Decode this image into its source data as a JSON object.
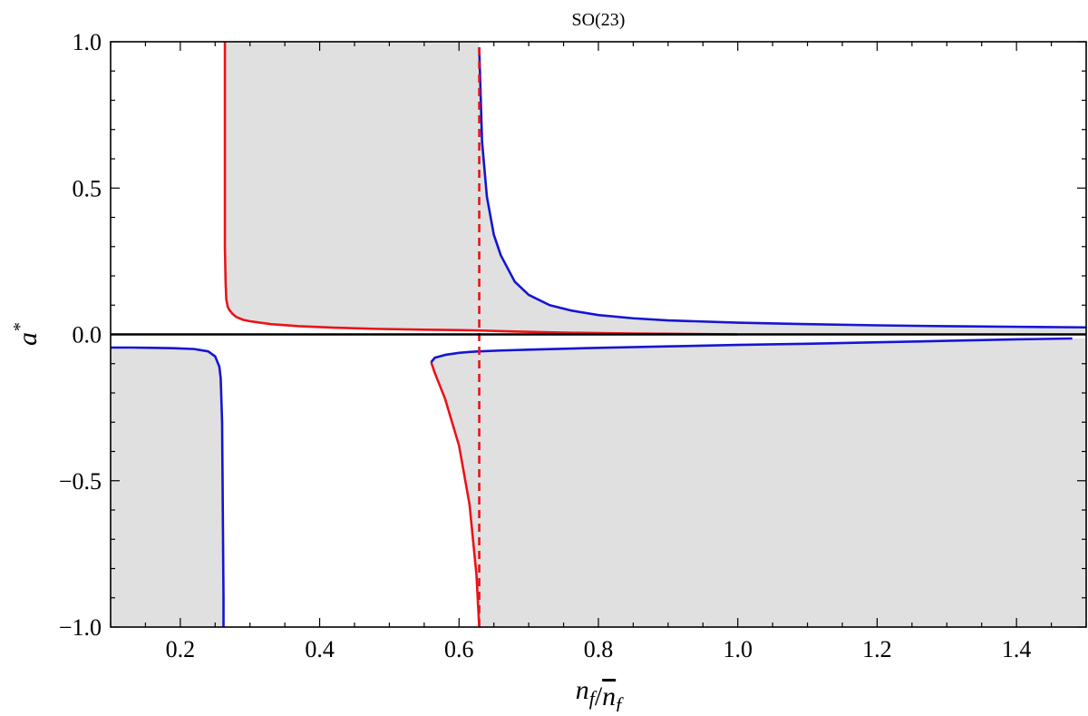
{
  "chart_data": {
    "type": "line",
    "title": "SO(23)",
    "xlabel": "n_f / n̄_f",
    "ylabel": "a*",
    "xlim": [
      0.1,
      1.5
    ],
    "ylim": [
      -1.0,
      1.0
    ],
    "x_ticks": [
      0.2,
      0.4,
      0.6,
      0.8,
      1.0,
      1.2,
      1.4
    ],
    "x_tick_labels": [
      "0.2",
      "0.4",
      "0.6",
      "0.8",
      "1.0",
      "1.2",
      "1.4"
    ],
    "y_ticks": [
      -1.0,
      -0.5,
      0.0,
      0.5,
      1.0
    ],
    "y_tick_labels": [
      "−1.0",
      "−0.5",
      "0.0",
      "0.5",
      "1.0"
    ],
    "grid": false,
    "legend": "none",
    "colors": {
      "red": "#e8141a",
      "blue": "#1515d2",
      "shade": "#e0e0e0",
      "axis": "#000000"
    },
    "shaded_regions": [
      {
        "x": [
          0.264,
          0.266,
          0.27,
          0.28,
          0.3,
          0.33,
          0.37,
          0.42,
          0.48,
          0.55,
          0.62,
          0.629
        ],
        "y_low": [
          0.2,
          0.12,
          0.085,
          0.06,
          0.045,
          0.035,
          0.028,
          0.023,
          0.019,
          0.016,
          0.014,
          0.014
        ],
        "y_high": 1.0
      },
      {
        "x": [
          0.629,
          0.633,
          0.64,
          0.65,
          0.66,
          0.68,
          0.7,
          0.73,
          0.76,
          0.8,
          0.85,
          0.9,
          1.0,
          1.1,
          1.2,
          1.3,
          1.4,
          1.5
        ],
        "y_low": [
          0.014,
          0.0135,
          0.013,
          0.012,
          0.011,
          0.0095,
          0.008,
          0.0065,
          0.005,
          0.004,
          0.003,
          0.0025,
          0.0015,
          0.001,
          0.0008,
          0.0006,
          0.0004,
          0.0003
        ],
        "y_high": [
          0.98,
          0.66,
          0.47,
          0.34,
          0.27,
          0.18,
          0.135,
          0.1,
          0.082,
          0.066,
          0.055,
          0.048,
          0.04,
          0.035,
          0.031,
          0.028,
          0.026,
          0.024
        ]
      },
      {
        "x": [
          0.1,
          0.13,
          0.16,
          0.19,
          0.22,
          0.24,
          0.25,
          0.256,
          0.258,
          0.26,
          0.262
        ],
        "y_high": [
          -0.045,
          -0.045,
          -0.046,
          -0.047,
          -0.05,
          -0.058,
          -0.075,
          -0.11,
          -0.15,
          -0.3,
          -1.0
        ],
        "y_low": -1.0
      },
      {
        "x": [
          0.56,
          0.565,
          0.58,
          0.6,
          0.615,
          0.625,
          0.629
        ],
        "y_high": [
          -0.095,
          -0.08,
          -0.07,
          -0.063,
          -0.06,
          -0.058,
          -0.058
        ],
        "y_low": [
          -0.095,
          -0.13,
          -0.22,
          -0.38,
          -0.58,
          -0.82,
          -1.0
        ]
      },
      {
        "x": [
          0.629,
          0.66,
          0.7,
          0.8,
          0.9,
          1.0,
          1.1,
          1.2,
          1.3,
          1.4,
          1.5
        ],
        "y_high": [
          -0.058,
          -0.055,
          -0.052,
          -0.046,
          -0.041,
          -0.036,
          -0.032,
          -0.027,
          -0.022,
          -0.017,
          -0.013
        ],
        "y_low": -1.0
      }
    ],
    "series": [
      {
        "color": "red",
        "style": "solid",
        "x": [
          0.264,
          0.264,
          0.264,
          0.265,
          0.266,
          0.268,
          0.27,
          0.275,
          0.28,
          0.29,
          0.3,
          0.33,
          0.37,
          0.42,
          0.48,
          0.55,
          0.62,
          0.68,
          0.75,
          0.85,
          1.0
        ],
        "y": [
          1.0,
          0.6,
          0.3,
          0.18,
          0.12,
          0.095,
          0.085,
          0.07,
          0.06,
          0.05,
          0.045,
          0.035,
          0.028,
          0.023,
          0.019,
          0.016,
          0.014,
          0.01,
          0.006,
          0.003,
          0.0
        ]
      },
      {
        "color": "blue",
        "style": "solid",
        "x": [
          0.629,
          0.633,
          0.64,
          0.65,
          0.66,
          0.68,
          0.7,
          0.73,
          0.76,
          0.8,
          0.85,
          0.9,
          1.0,
          1.1,
          1.2,
          1.3,
          1.4,
          1.5
        ],
        "y": [
          0.98,
          0.66,
          0.47,
          0.34,
          0.27,
          0.18,
          0.135,
          0.1,
          0.082,
          0.066,
          0.055,
          0.048,
          0.04,
          0.035,
          0.031,
          0.028,
          0.026,
          0.024
        ]
      },
      {
        "color": "blue",
        "style": "solid",
        "x": [
          0.1,
          0.13,
          0.16,
          0.19,
          0.22,
          0.24,
          0.25,
          0.256,
          0.258,
          0.26,
          0.261,
          0.262,
          0.262
        ],
        "y": [
          -0.045,
          -0.045,
          -0.046,
          -0.047,
          -0.05,
          -0.058,
          -0.075,
          -0.11,
          -0.15,
          -0.3,
          -0.6,
          -0.9,
          -1.0
        ]
      },
      {
        "color": "red",
        "style": "solid",
        "x": [
          0.629,
          0.625,
          0.615,
          0.6,
          0.58,
          0.565,
          0.56
        ],
        "y": [
          -1.0,
          -0.82,
          -0.58,
          -0.38,
          -0.22,
          -0.13,
          -0.095
        ]
      },
      {
        "color": "blue",
        "style": "solid",
        "x": [
          0.56,
          0.565,
          0.58,
          0.6,
          0.615,
          0.629,
          0.66,
          0.7,
          0.8,
          0.9,
          1.0,
          1.1,
          1.2,
          1.3,
          1.4,
          1.48
        ],
        "y": [
          -0.095,
          -0.08,
          -0.07,
          -0.063,
          -0.06,
          -0.058,
          -0.055,
          -0.052,
          -0.046,
          -0.041,
          -0.036,
          -0.032,
          -0.027,
          -0.022,
          -0.017,
          -0.014
        ]
      },
      {
        "color": "red",
        "style": "dashed",
        "x": [
          0.629,
          0.629
        ],
        "y": [
          -1.0,
          1.0
        ]
      },
      {
        "color": "axis",
        "style": "solid",
        "x": [
          0.1,
          1.5
        ],
        "y": [
          0.0,
          0.0
        ]
      }
    ]
  }
}
